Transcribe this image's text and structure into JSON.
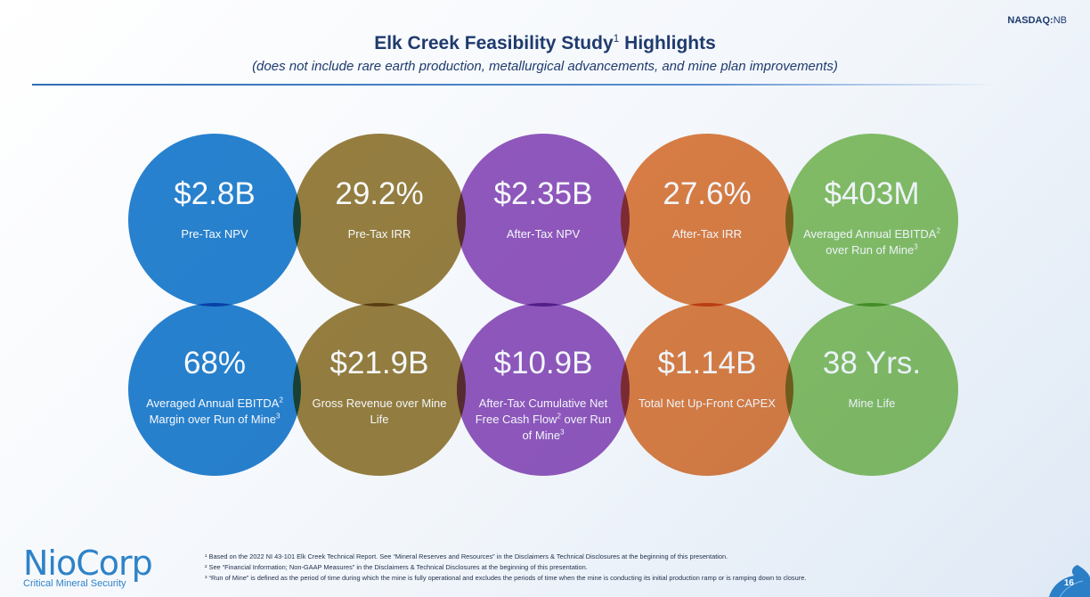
{
  "header": {
    "ticker_prefix": "NASDAQ:",
    "ticker_symbol": "NB",
    "title": "Elk Creek Feasibility Study",
    "title_sup": "1",
    "title_suffix": " Highlights",
    "subtitle": "(does not include rare earth production, metallurgical advancements, and mine plan improvements)"
  },
  "metrics_row1": [
    {
      "value": "$2.8B",
      "label": "Pre-Tax NPV",
      "sup": "",
      "label_after": ""
    },
    {
      "value": "29.2%",
      "label": "Pre-Tax IRR",
      "sup": "",
      "label_after": ""
    },
    {
      "value": "$2.35B",
      "label": "After-Tax NPV",
      "sup": "",
      "label_after": ""
    },
    {
      "value": "27.6%",
      "label": "After-Tax IRR",
      "sup": "",
      "label_after": ""
    },
    {
      "value": "$403M",
      "label": "Averaged Annual EBITDA",
      "sup": "2",
      "label_after": " over Run of Mine",
      "sup2": "3"
    }
  ],
  "metrics_row2": [
    {
      "value": "68%",
      "label": "Averaged Annual EBITDA",
      "sup": "2",
      "label_after": " Margin over Run of Mine",
      "sup2": "3"
    },
    {
      "value": "$21.9B",
      "label": "Gross Revenue over Mine Life",
      "sup": "",
      "label_after": ""
    },
    {
      "value": "$10.9B",
      "label": "After-Tax Cumulative Net Free Cash Flow",
      "sup": "2",
      "label_after": " over Run of Mine",
      "sup2": "3"
    },
    {
      "value": "$1.14B",
      "label": "Total Net Up-Front CAPEX",
      "sup": "",
      "label_after": ""
    },
    {
      "value": "38 Yrs.",
      "label": "Mine Life",
      "sup": "",
      "label_after": ""
    }
  ],
  "logo": {
    "name": "NioCorp",
    "tagline": "Critical Mineral Security"
  },
  "footnotes": [
    "¹ Based on the 2022 NI 43-101 Elk Creek Technical Report. See “Mineral Reserves and Resources” in the Disclaimers & Technical Disclosures at the beginning of this presentation.",
    "² See “Financial Information; Non-GAAP Measures” in the Disclaimers & Technical Disclosures at the beginning of this presentation.",
    "³ “Run of Mine”  is defined as the period of time during which the mine is fully operational and excludes the periods of time when the mine is conducting its initial production ramp or is ramping down to closure."
  ],
  "page_number": "16",
  "colors": {
    "blue": "#1678CB",
    "olive": "#806010",
    "purple": "#7C34AF",
    "orange": "#DA6A24",
    "green": "#6EB446",
    "title": "#1F3B6E"
  }
}
